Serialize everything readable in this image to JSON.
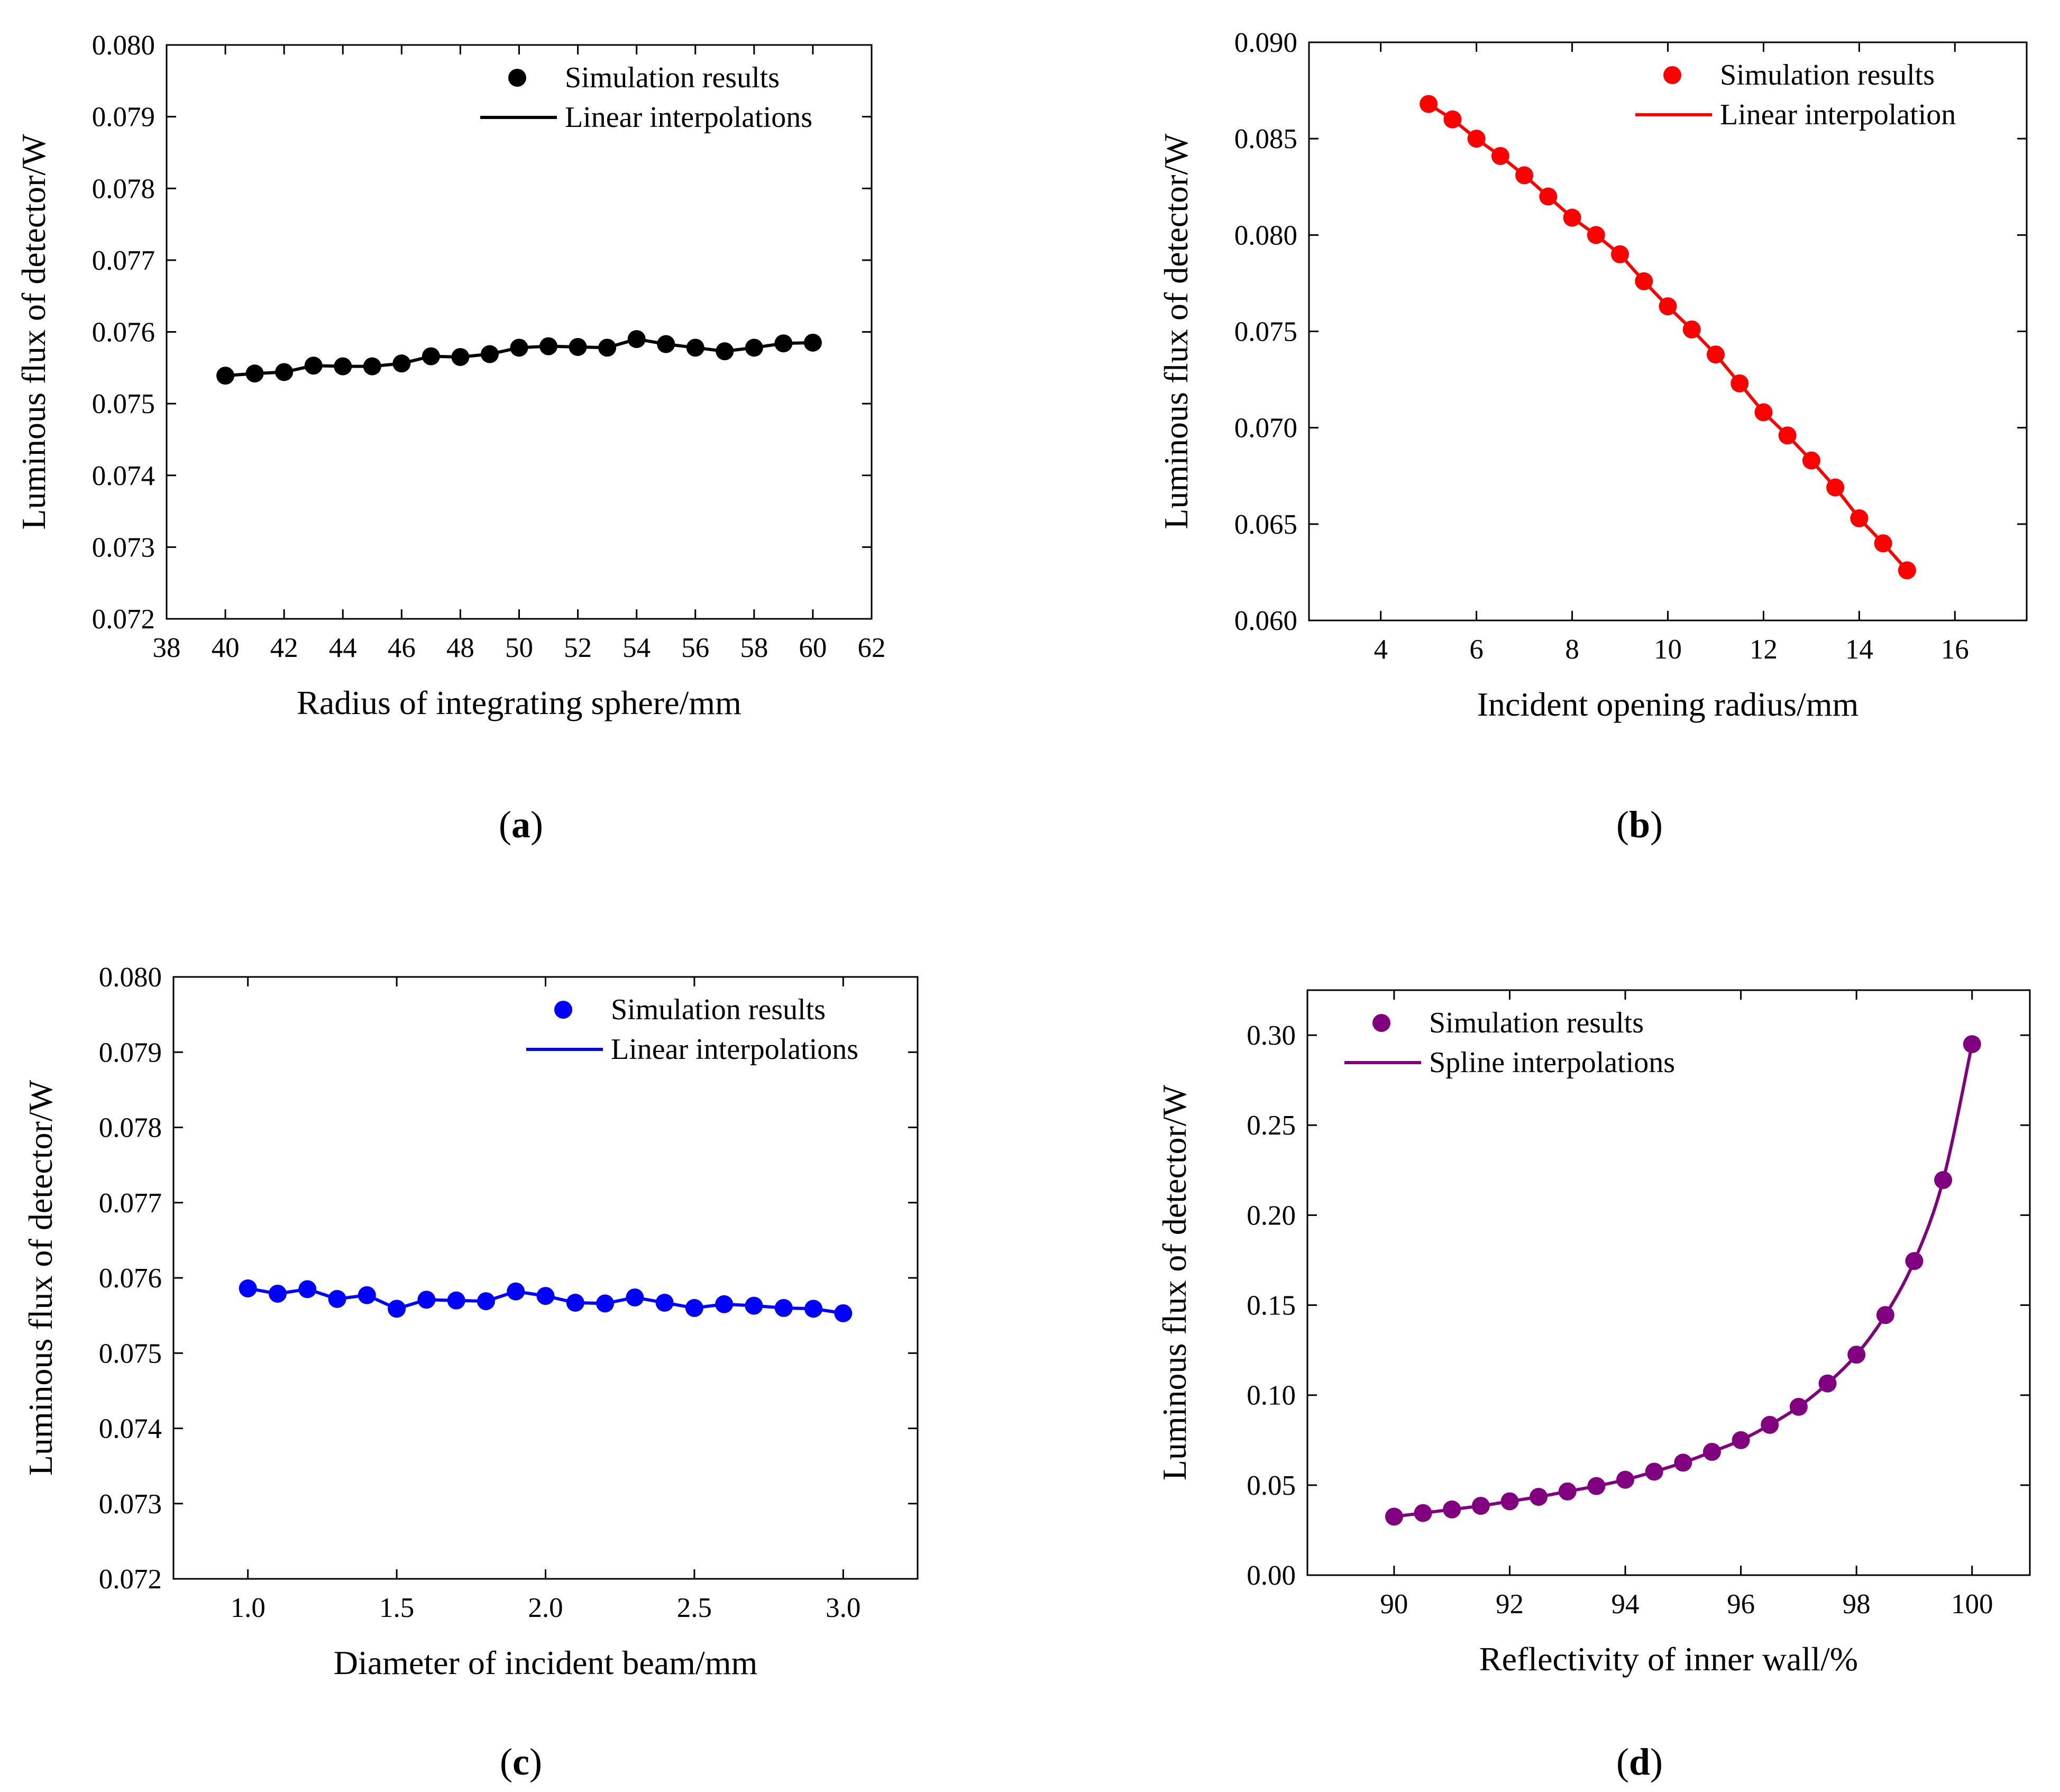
{
  "captions": [
    "a",
    "b",
    "c",
    "d"
  ],
  "chart_data": [
    {
      "type": "line",
      "panel": "a",
      "xlabel": "Radius of integrating sphere/mm",
      "ylabel": "Luminous flux of detector/W",
      "xlim": [
        38,
        62
      ],
      "ylim": [
        0.072,
        0.08
      ],
      "xticks": [
        "38",
        "40",
        "42",
        "44",
        "46",
        "48",
        "50",
        "52",
        "54",
        "56",
        "58",
        "60",
        "62"
      ],
      "yticks": [
        "0.072",
        "0.073",
        "0.074",
        "0.075",
        "0.076",
        "0.077",
        "0.078",
        "0.079",
        "0.080"
      ],
      "color": "#000000",
      "legend": {
        "marker_label": "Simulation results",
        "line_label": "Linear interpolations",
        "position": "top-right"
      },
      "x": [
        40,
        41,
        42,
        43,
        44,
        45,
        46,
        47,
        48,
        49,
        50,
        51,
        52,
        53,
        54,
        55,
        56,
        57,
        58,
        59,
        60
      ],
      "y": [
        0.07539,
        0.07542,
        0.07544,
        0.07553,
        0.07552,
        0.07552,
        0.07556,
        0.07566,
        0.07565,
        0.07569,
        0.07578,
        0.0758,
        0.07579,
        0.07578,
        0.0759,
        0.07583,
        0.07578,
        0.07573,
        0.07578,
        0.07584,
        0.07585
      ]
    },
    {
      "type": "line",
      "panel": "b",
      "xlabel": "Incident opening radius/mm",
      "ylabel": "Luminous flux of detector/W",
      "xlim": [
        2.5,
        17.5
      ],
      "ylim": [
        0.06,
        0.09
      ],
      "xticks": [
        "4",
        "6",
        "8",
        "10",
        "12",
        "14",
        "16"
      ],
      "yticks": [
        "0.060",
        "0.065",
        "0.070",
        "0.075",
        "0.080",
        "0.085",
        "0.090"
      ],
      "color": "#ff0000",
      "legend": {
        "marker_label": "Simulation results",
        "line_label": "Linear interpolation",
        "position": "top-right"
      },
      "x": [
        5,
        5.5,
        6,
        6.5,
        7,
        7.5,
        8,
        8.5,
        9,
        9.5,
        10,
        10.5,
        11,
        11.5,
        12,
        12.5,
        13,
        13.5,
        14,
        14.5,
        15
      ],
      "y": [
        0.0868,
        0.086,
        0.085,
        0.0841,
        0.0831,
        0.082,
        0.0809,
        0.08,
        0.079,
        0.0776,
        0.0763,
        0.0751,
        0.0738,
        0.0723,
        0.0708,
        0.0696,
        0.0683,
        0.0669,
        0.0653,
        0.064,
        0.0626
      ]
    },
    {
      "type": "line",
      "panel": "c",
      "xlabel": "Diameter of incident beam/mm",
      "ylabel": "Luminous flux of detector/W",
      "xlim": [
        0.75,
        3.25
      ],
      "ylim": [
        0.072,
        0.08
      ],
      "xticks": [
        "1.0",
        "1.5",
        "2.0",
        "2.5",
        "3.0"
      ],
      "yticks": [
        "0.072",
        "0.073",
        "0.074",
        "0.075",
        "0.076",
        "0.077",
        "0.078",
        "0.079",
        "0.080"
      ],
      "color": "#0000ff",
      "legend": {
        "marker_label": "Simulation results",
        "line_label": "Linear interpolations",
        "position": "top-right"
      },
      "x": [
        1.0,
        1.1,
        1.2,
        1.3,
        1.4,
        1.5,
        1.6,
        1.7,
        1.8,
        1.9,
        2.0,
        2.1,
        2.2,
        2.3,
        2.4,
        2.5,
        2.6,
        2.7,
        2.8,
        2.9,
        3.0
      ],
      "y": [
        0.07586,
        0.07579,
        0.07585,
        0.07572,
        0.07577,
        0.07559,
        0.07571,
        0.0757,
        0.07569,
        0.07582,
        0.07576,
        0.07567,
        0.07566,
        0.07574,
        0.07567,
        0.0756,
        0.07565,
        0.07563,
        0.0756,
        0.07559,
        0.07553
      ]
    },
    {
      "type": "line",
      "panel": "d",
      "xlabel": "Reflectivity of inner wall/%",
      "ylabel": "Luminous flux of detector/W",
      "xlim": [
        88.5,
        101.0
      ],
      "ylim": [
        0.0,
        0.325
      ],
      "xticks": [
        "90",
        "92",
        "94",
        "96",
        "98",
        "100"
      ],
      "yticks": [
        "0.00",
        "0.05",
        "0.10",
        "0.15",
        "0.20",
        "0.25",
        "0.30"
      ],
      "color": "#800080",
      "legend": {
        "marker_label": "Simulation results",
        "line_label": "Spline interpolations",
        "position": "top-left"
      },
      "x": [
        90,
        90.5,
        91,
        91.5,
        92,
        92.5,
        93,
        93.5,
        94,
        94.5,
        95,
        95.5,
        96,
        96.5,
        97,
        97.5,
        98,
        98.5,
        99,
        99.5,
        100
      ],
      "y": [
        0.0325,
        0.0345,
        0.0365,
        0.0385,
        0.041,
        0.0435,
        0.0465,
        0.0495,
        0.053,
        0.0575,
        0.0625,
        0.0685,
        0.075,
        0.0835,
        0.0935,
        0.1065,
        0.1225,
        0.1445,
        0.1745,
        0.2195,
        0.295
      ]
    }
  ]
}
